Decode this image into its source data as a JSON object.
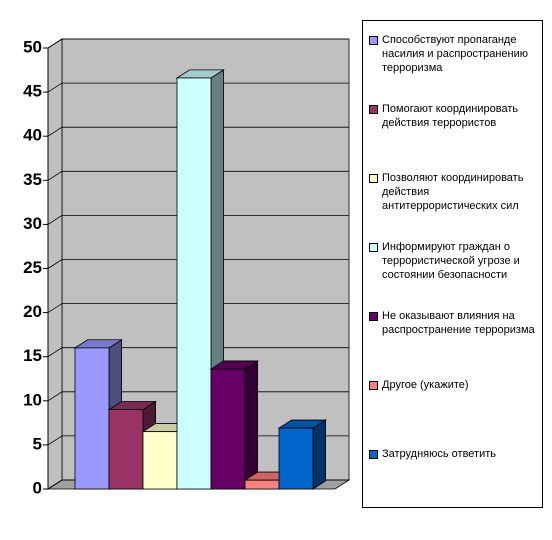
{
  "chart_data": {
    "type": "bar3d",
    "series": [
      {
        "name": "Способствуют пропаганде насилия и распространению терроризма",
        "color": "#9999ff",
        "values": [
          16
        ]
      },
      {
        "name": "Помогают координировать действия террористов",
        "color": "#993366",
        "values": [
          9
        ]
      },
      {
        "name": "Позволяют координировать действия антитеррористических сил",
        "color": "#ffffcc",
        "values": [
          6.5
        ]
      },
      {
        "name": "Информируют граждан о террористической угрозе и состоянии безопасности",
        "color": "#ccffff",
        "values": [
          46.6
        ]
      },
      {
        "name": "Не оказывают влияния на распространение терроризма",
        "color": "#660066",
        "values": [
          13.6
        ]
      },
      {
        "name": "Другое (укажите)",
        "color": "#ff8080",
        "values": [
          1
        ]
      },
      {
        "name": "Затрудняюсь ответить",
        "color": "#0066cc",
        "values": [
          6.9
        ]
      }
    ],
    "ylim": [
      0,
      50
    ],
    "yticks": [
      0,
      5,
      10,
      15,
      20,
      25,
      30,
      35,
      40,
      45,
      50
    ],
    "grid": true,
    "legend": "right"
  }
}
